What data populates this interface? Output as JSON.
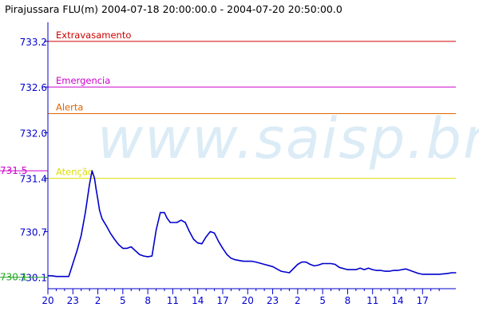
{
  "colors": {
    "axis": "#0000cc",
    "series": "#0000cc",
    "watermark": "#dcecf6",
    "max_marker": "#cc00cc",
    "min_marker": "#22aa22"
  },
  "chart_data": {
    "type": "line",
    "title": "Pirajussara FLU(m) 2004-07-18 20:00:00.0 - 2004-07-20 20:50:00.0",
    "watermark": "www.saisp.br",
    "xlabel": "",
    "ylabel": "",
    "x_unit": "hours since 2004-07-18 20:00",
    "xlim": [
      0,
      49
    ],
    "ylim": [
      729.95,
      733.45
    ],
    "grid": false,
    "legend": "none",
    "x_ticks": [
      {
        "x": 0,
        "label": "20"
      },
      {
        "x": 3,
        "label": "23"
      },
      {
        "x": 6,
        "label": "2"
      },
      {
        "x": 9,
        "label": "5"
      },
      {
        "x": 12,
        "label": "8"
      },
      {
        "x": 15,
        "label": "11"
      },
      {
        "x": 18,
        "label": "14"
      },
      {
        "x": 21,
        "label": "17"
      },
      {
        "x": 24,
        "label": "20"
      },
      {
        "x": 27,
        "label": "23"
      },
      {
        "x": 30,
        "label": "2"
      },
      {
        "x": 33,
        "label": "5"
      },
      {
        "x": 36,
        "label": "8"
      },
      {
        "x": 39,
        "label": "11"
      },
      {
        "x": 42,
        "label": "14"
      },
      {
        "x": 45,
        "label": "17"
      }
    ],
    "y_ticks": [
      {
        "y": 733.2,
        "label": "733.2"
      },
      {
        "y": 732.6,
        "label": "732.6"
      },
      {
        "y": 732.0,
        "label": "732.0"
      },
      {
        "y": 731.4,
        "label": "731.4"
      },
      {
        "y": 730.7,
        "label": "730.7"
      },
      {
        "y": 730.1,
        "label": "730.1"
      }
    ],
    "thresholds": [
      {
        "name": "Extravasamento",
        "value": 733.2,
        "color": "#cc0000"
      },
      {
        "name": "Emergencia",
        "value": 732.6,
        "color": "#cc00cc"
      },
      {
        "name": "Alerta",
        "value": 732.25,
        "color": "#dd6600"
      },
      {
        "name": "Atenção",
        "value": 731.4,
        "color": "#dddd00"
      }
    ],
    "max_marker": {
      "label": "731.5",
      "value": 731.5
    },
    "min_marker": {
      "label": "730.1",
      "value": 730.1
    },
    "series": [
      {
        "x": [
          0,
          0.5,
          1.0,
          1.5,
          2.0,
          2.5,
          3.0,
          3.5,
          4.0,
          4.5,
          5.0,
          5.3,
          5.6,
          5.8,
          6.0,
          6.2,
          6.5,
          7.0,
          7.5,
          8.0,
          8.5,
          9.0,
          9.5,
          10.0,
          10.5,
          11.0,
          11.5,
          12.0,
          12.5,
          13.0,
          13.5,
          14.0,
          14.3,
          14.7,
          15.0,
          15.5,
          16.0,
          16.5,
          17.0,
          17.5,
          18.0,
          18.5,
          19.0,
          19.5,
          20.0,
          20.5,
          21.0,
          21.5,
          22.0,
          22.5,
          23.0,
          23.5,
          24.0,
          24.5,
          25.0,
          26.0,
          27.0,
          28.0,
          29.0,
          30.0,
          30.5,
          31.0,
          31.5,
          32.0,
          32.5,
          33.0,
          33.5,
          34.0,
          34.5,
          35.0,
          36.0,
          37.0,
          37.5,
          38.0,
          38.5,
          39.0,
          39.5,
          40.0,
          40.5,
          41.0,
          41.5,
          42.0,
          43.0,
          44.0,
          44.5,
          45.0,
          45.5,
          46.0,
          47.0,
          48.0,
          48.5,
          49.0
        ],
        "values": [
          730.12,
          730.12,
          730.11,
          730.11,
          730.11,
          730.11,
          730.28,
          730.45,
          730.65,
          730.95,
          731.32,
          731.5,
          731.4,
          731.25,
          731.12,
          730.98,
          730.87,
          730.78,
          730.68,
          730.6,
          730.53,
          730.48,
          730.48,
          730.5,
          730.45,
          730.4,
          730.38,
          730.37,
          730.38,
          730.72,
          730.95,
          730.95,
          730.88,
          730.82,
          730.82,
          730.82,
          730.85,
          730.82,
          730.7,
          730.6,
          730.55,
          730.54,
          730.63,
          730.7,
          730.68,
          730.57,
          730.48,
          730.4,
          730.35,
          730.33,
          730.32,
          730.31,
          730.31,
          730.31,
          730.3,
          730.27,
          730.24,
          730.18,
          730.16,
          730.27,
          730.3,
          730.3,
          730.27,
          730.25,
          730.26,
          730.28,
          730.28,
          730.28,
          730.27,
          730.23,
          730.2,
          730.2,
          730.22,
          730.2,
          730.22,
          730.2,
          730.19,
          730.19,
          730.18,
          730.18,
          730.19,
          730.19,
          730.21,
          730.17,
          730.15,
          730.14,
          730.14,
          730.14,
          730.14,
          730.15,
          730.16,
          730.16
        ]
      }
    ]
  }
}
